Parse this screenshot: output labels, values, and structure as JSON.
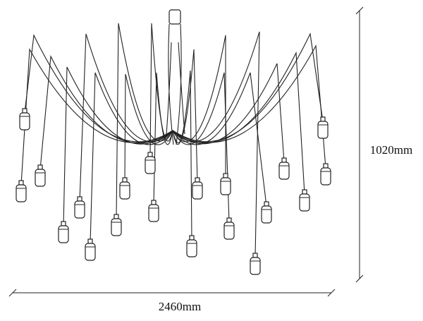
{
  "dimensions": {
    "height": "1020mm",
    "width": "2460mm"
  }
}
